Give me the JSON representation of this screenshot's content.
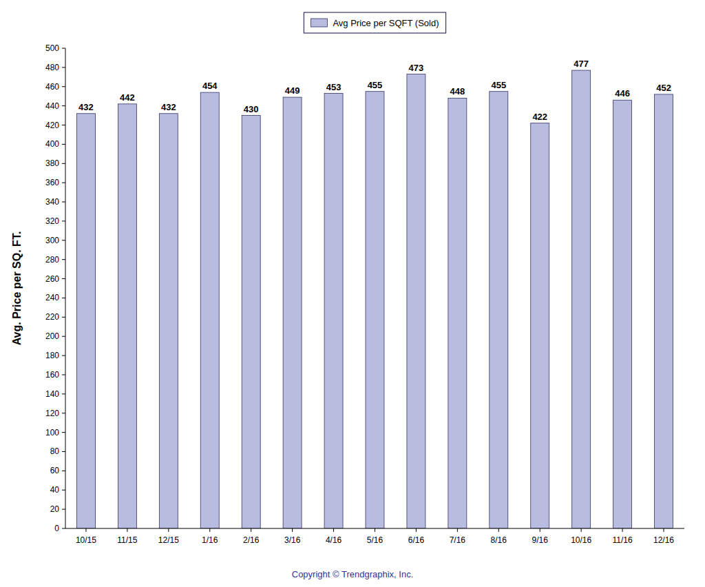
{
  "chart_data": {
    "type": "bar",
    "categories": [
      "10/15",
      "11/15",
      "12/15",
      "1/16",
      "2/16",
      "3/16",
      "4/16",
      "5/16",
      "6/16",
      "7/16",
      "8/16",
      "9/16",
      "10/16",
      "11/16",
      "12/16"
    ],
    "series": [
      {
        "name": "Avg Price per SQFT (Sold)",
        "color": "#b8bcdf",
        "values": [
          432,
          442,
          432,
          454,
          430,
          449,
          453,
          455,
          473,
          448,
          455,
          422,
          477,
          446,
          452
        ]
      }
    ],
    "ylabel": "Avg. Price per SQ. FT.",
    "ylim": [
      0,
      500
    ],
    "yticks": [
      0,
      20,
      40,
      60,
      80,
      100,
      120,
      140,
      160,
      180,
      200,
      220,
      240,
      260,
      280,
      300,
      320,
      340,
      360,
      380,
      400,
      420,
      440,
      460,
      480,
      500
    ],
    "grid": false,
    "legend": "top",
    "data_labels": true,
    "annotations": [
      "Copyright © Trendgraphix, Inc."
    ]
  }
}
